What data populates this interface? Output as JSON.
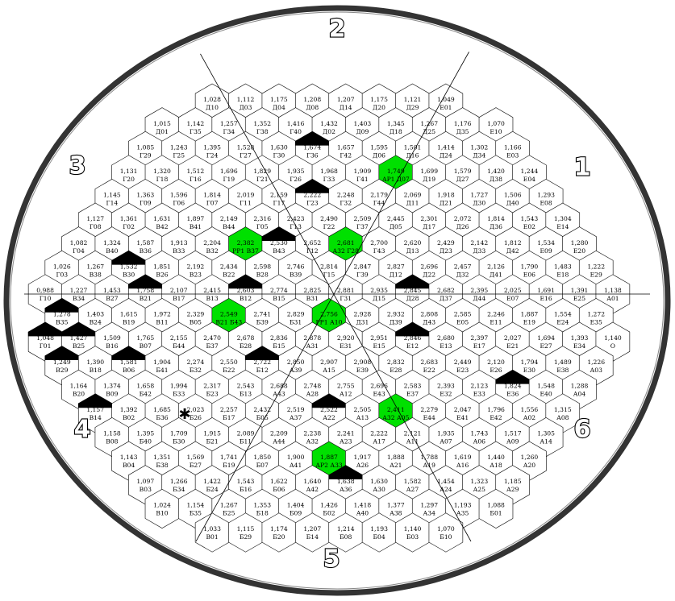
{
  "sector_numbers": [
    "1",
    "2",
    "3",
    "4",
    "5",
    "6"
  ],
  "colors": {
    "background": "#ffffff",
    "outer_ring": "#333333",
    "hex_fill": "#ffffff",
    "hex_stroke": "#000000",
    "highlight": "#00e000",
    "dark_cap": "#000000"
  },
  "rows": [
    {
      "r": -8,
      "cells": [
        "1,028 Д10",
        "1,112 Д03",
        "1,175 Д04",
        "1,208 Д08",
        "1,207 Д14",
        "1,175 Д20",
        "1,121 Д29",
        "1,049 Е01"
      ]
    },
    {
      "r": -7,
      "cells": [
        "1,015 Д01",
        "1,142 Г35",
        "1,257 Г34",
        "1,352 Г38",
        "1,416 Г40",
        "1,432 Д02",
        "1,403 Д09",
        "1,345 Д18",
        "1,267 Д25",
        "1,176 Д35",
        "1,070 Е10"
      ]
    },
    {
      "r": -6,
      "cells": [
        "1,085 Г29",
        "1,243 Г25",
        "1,395 Г24",
        "1,528 Г27",
        "1,630 Г30",
        "1,674 Г36",
        "1,657 Г42",
        "1,595 Д06",
        "1,501 Д16",
        "1,414 Д24",
        "1,302 Д34",
        "1,166 Е03"
      ]
    },
    {
      "r": -5,
      "cells": [
        "1,131 Г20",
        "1,320 Г18",
        "1,512 Г16",
        "1,696 Г19",
        "1,829 Г21",
        "1,935 Г26",
        "1,968 Г33",
        "1,909 Г41",
        "1,749 АР1 Д07",
        "1,699 Д19",
        "1,579 Д27",
        "1,420 Д38",
        "1,244 Е04"
      ]
    },
    {
      "r": -4,
      "cells": [
        "1,145 Г14",
        "1,363 Г09",
        "1,596 Г06",
        "1,814 Г07",
        "2,019 Г11",
        "2,159 Г17",
        "2,222 Г23",
        "2,248 Г32",
        "2,179 Г44",
        "2,069 Д11",
        "1,918 Д21",
        "1,727 Д30",
        "1,506 Д40",
        "1,293 Е08"
      ]
    },
    {
      "r": -3,
      "cells": [
        "1,127 Г08",
        "1,361 Г02",
        "1,631 В42",
        "1,897 В41",
        "2,149 В44",
        "2,316 Г05",
        "2,423 Г13",
        "2,490 Г22",
        "2,509 Г37",
        "2,445 Д05",
        "2,301 Д17",
        "2,072 Д26",
        "1,814 Д36",
        "1,543 Е02",
        "1,304 Е14"
      ]
    },
    {
      "r": -2,
      "cells": [
        "1,082 Г04",
        "1,324 В40",
        "1,587 В36",
        "1,913 В33",
        "2,204 В32",
        "2,382 РР1 В37",
        "2,530 В43",
        "2,652 Г12",
        "2,681 А32 Г28",
        "2,700 Г43",
        "2,620 Д13",
        "2,429 Д23",
        "2,142 Д33",
        "1,812 Д42",
        "1,534 Е09",
        "1,280 Е20"
      ]
    },
    {
      "r": -1,
      "cells": [
        "1,026 Г03",
        "1,267 В38",
        "1,532 В30",
        "1,851 В26",
        "2,192 В23",
        "2,434 В22",
        "2,598 В28",
        "2,746 В39",
        "2,814 Г15",
        "2,847 Г39",
        "2,827 Д12",
        "2,696 Д22",
        "2,457 Д32",
        "2,126 Д41",
        "1,790 Е06",
        "1,483 Е18",
        "1,222 Е29"
      ]
    },
    {
      "r": 0,
      "cells": [
        "0,988 Г10",
        "1,227 В34",
        "1,453 В27",
        "1,758 В21",
        "2,107 В17",
        "2,415 В13",
        "2,603 В12",
        "2,774 В15",
        "2,825 В31",
        "2,881 Г31",
        "2,935 Д15",
        "2,845 Д28",
        "2,682 Д37",
        "2,395 Д44",
        "2,025 Е07",
        "1,691 Е16",
        "1,391 Е25",
        "1,138 А01"
      ]
    },
    {
      "r": 1,
      "cells": [
        "1,278 В35",
        "1,403 В24",
        "1,615 В19",
        "1,972 В11",
        "2,329 В05",
        "2,549 В21 Б43",
        "2,741 Б39",
        "2,829 Б31",
        "2,756 РР1 А10",
        "2,928 Д31",
        "2,932 Д39",
        "2,808 Д43",
        "2,585 Е05",
        "2,246 Е11",
        "1,887 Е19",
        "1,554 Е24",
        "1,272 Е35"
      ]
    },
    {
      "r": 2,
      "cells": [
        "1,048 Г01",
        "1,427 В25",
        "1,509 В16",
        "1,765 В07",
        "2,155 Б44",
        "2,470 Б37",
        "2,678 Б28",
        "2,836 Б15",
        "2,878 А31",
        "2,920 Е31",
        "2,951 Е15",
        "2,846 Е12",
        "2,680 Е13",
        "2,397 Е17",
        "2,027 Е21",
        "1,694 Е27",
        "1,393 Е34",
        "1,140 О"
      ]
    },
    {
      "r": 3,
      "cells": [
        "1,249 В29",
        "1,390 В18",
        "1,581 В06",
        "1,904 Б41",
        "2,274 Б32",
        "2,550 Б22",
        "2,722 Б12",
        "2,850 А39",
        "2,907 А15",
        "2,908 Е39",
        "2,832 Е28",
        "2,683 Е22",
        "2,449 Е23",
        "2,120 Е26",
        "1,794 Е30",
        "1,489 Е38",
        "1,226 А03"
      ]
    },
    {
      "r": 4,
      "cells": [
        "1,164 В20",
        "1,374 В09",
        "1,658 Б42",
        "1,994 Б33",
        "2,317 Б23",
        "2,543 Б13",
        "2,688 А43",
        "2,748 А28",
        "2,755 А12",
        "2,696 Е43",
        "2,583 Е37",
        "2,393 Е32",
        "2,123 Е33",
        "1,824 Е36",
        "1,548 Е40",
        "1,288 А04"
      ]
    },
    {
      "r": 5,
      "cells": [
        "1,157 В14",
        "1,392 В02",
        "1,685 Б36",
        "2,023 Б26",
        "2,257 Б17",
        "2,432 Б05",
        "2,519 А37",
        "2,522 А22",
        "2,505 А13",
        "2,411 А32 А05",
        "2,279 Е44",
        "2,047 Е41",
        "1,796 Е42",
        "1,556 А02",
        "1,315 А08"
      ]
    },
    {
      "r": 6,
      "cells": [
        "1,158 В08",
        "1,395 Б40",
        "1,709 Б30",
        "1,915 Б21",
        "2,089 Б11",
        "2,209 А44",
        "2,238 А32",
        "2,241 А23",
        "2,222 А17",
        "2,121 А11",
        "1,935 А07",
        "1,743 А06",
        "1,517 А09",
        "1,305 А14"
      ]
    },
    {
      "r": 7,
      "cells": [
        "1,143 В04",
        "1,351 Б38",
        "1,569 Б27",
        "1,741 Б19",
        "1,850 Б07",
        "1,900 А41",
        "1,887 АР2 А33",
        "1,917 А26",
        "1,888 А21",
        "1,788 А19",
        "1,619 А16",
        "1,440 А18",
        "1,260 А20"
      ]
    },
    {
      "r": 8,
      "cells": [
        "1,097 В03",
        "1,266 Б34",
        "1,422 Б24",
        "1,543 Б16",
        "1,622 Б06",
        "1,640 А42",
        "1,638 А36",
        "1,630 А30",
        "1,582 А27",
        "1,454 А24",
        "1,323 А25",
        "1,185 А29"
      ]
    },
    {
      "r": 9,
      "cells": [
        "1,024 В10",
        "1,154 Б35",
        "1,267 Б25",
        "1,353 Б18",
        "1,404 Б09",
        "1,426 Б02",
        "1,418 А40",
        "1,377 А38",
        "1,297 А34",
        "1,193 А35",
        "1,088 Б01"
      ]
    },
    {
      "r": 10,
      "cells": [
        "1,033 В01",
        "1,115 Б29",
        "1,174 Б20",
        "1,207 Б14",
        "1,214 Б08",
        "1,193 Б04",
        "1,140 Б03",
        "1,070 Б10"
      ]
    }
  ],
  "highlighted_cells": [
    "1,749 АР1 Д07",
    "2,382 РР1 В37",
    "2,681 А32 Г28",
    "2,549 В21 Б43",
    "2,756 РР1 А10",
    "2,411 А32 А05",
    "1,887 АР2 А33"
  ],
  "dark_capped_cells": [
    "1,674 Г36",
    "2,222 Г23",
    "2,530 В43",
    "1,532 В30",
    "1,758 В21",
    "2,603 В12",
    "2,845 Д28",
    "1,278 В35",
    "1,048 Г01",
    "1,427 В25",
    "2,846 Е12",
    "1,249 В29",
    "1,581 В06",
    "2,722 Б12",
    "1,824 Е36",
    "1,157 В14",
    "2,522 А22",
    "1,638 А36"
  ],
  "thick_outlined_cells": [
    "2,047 Е41",
    "1,888 А21"
  ]
}
